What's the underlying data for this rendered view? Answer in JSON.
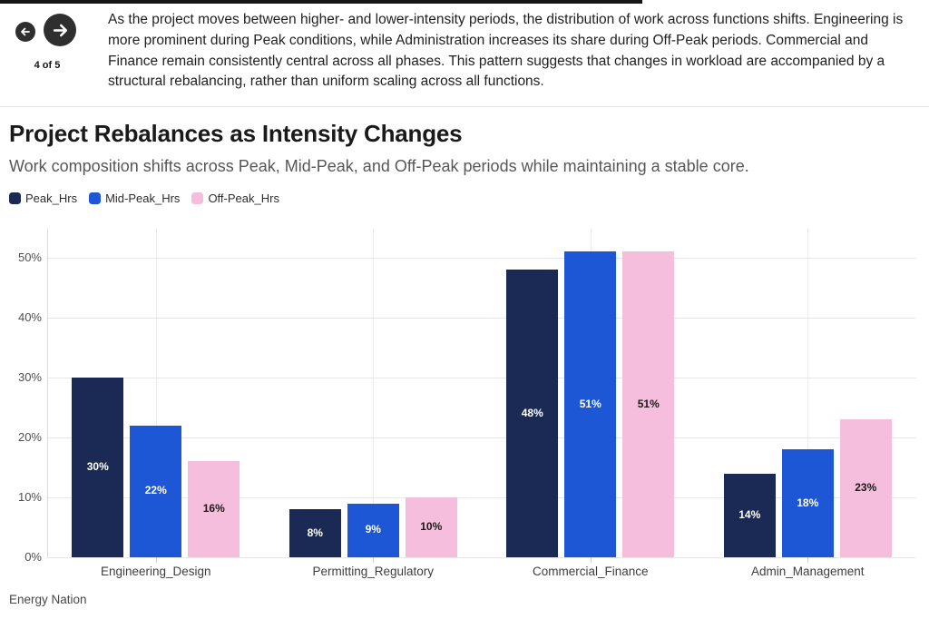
{
  "nav": {
    "counter": "4 of 5"
  },
  "header": {
    "description": "As the project moves between higher- and lower-intensity periods, the distribution of work across functions shifts. Engineering is more prominent during Peak conditions, while Administration increases its share during Off-Peak periods. Commercial and Finance remain consistently central across all phases. This pattern suggests that changes in workload are accompanied by a structural rebalancing, rather than uniform scaling across all functions."
  },
  "main": {
    "title": "Project Rebalances as Intensity Changes",
    "subtitle": "Work composition shifts across Peak, Mid-Peak, and Off-Peak periods while maintaining a stable core."
  },
  "footer": {
    "source": "Energy Nation"
  },
  "colors": {
    "peak": "#1b2a55",
    "mid_peak": "#1e57d6",
    "off_peak": "#f5bedd"
  },
  "chart_data": {
    "type": "bar",
    "title": "Project Rebalances as Intensity Changes",
    "subtitle": "Work composition shifts across Peak, Mid-Peak, and Off-Peak periods while maintaining a stable core.",
    "categories": [
      "Engineering_Design",
      "Permitting_Regulatory",
      "Commercial_Finance",
      "Admin_Management"
    ],
    "series": [
      {
        "name": "Peak_Hrs",
        "color": "#1b2a55",
        "label_color": "#ffffff",
        "values": [
          30,
          8,
          48,
          14
        ],
        "labels": [
          "30%",
          "8%",
          "48%",
          "14%"
        ]
      },
      {
        "name": "Mid-Peak_Hrs",
        "color": "#1e57d6",
        "label_color": "#ffffff",
        "values": [
          22,
          9,
          51,
          18
        ],
        "labels": [
          "22%",
          "9%",
          "51%",
          "18%"
        ]
      },
      {
        "name": "Off-Peak_Hrs",
        "color": "#f5bedd",
        "label_color": "#1a1a1a",
        "values": [
          16,
          10,
          51,
          23
        ],
        "labels": [
          "16%",
          "10%",
          "51%",
          "23%"
        ]
      }
    ],
    "xlabel": "",
    "ylabel": "",
    "yticks": [
      0,
      10,
      20,
      30,
      40,
      50
    ],
    "ytick_labels": [
      "0%",
      "10%",
      "20%",
      "30%",
      "40%",
      "50%"
    ],
    "ylim": [
      0,
      55
    ],
    "grid": true,
    "legend_position": "top-left",
    "source": "Energy Nation"
  }
}
